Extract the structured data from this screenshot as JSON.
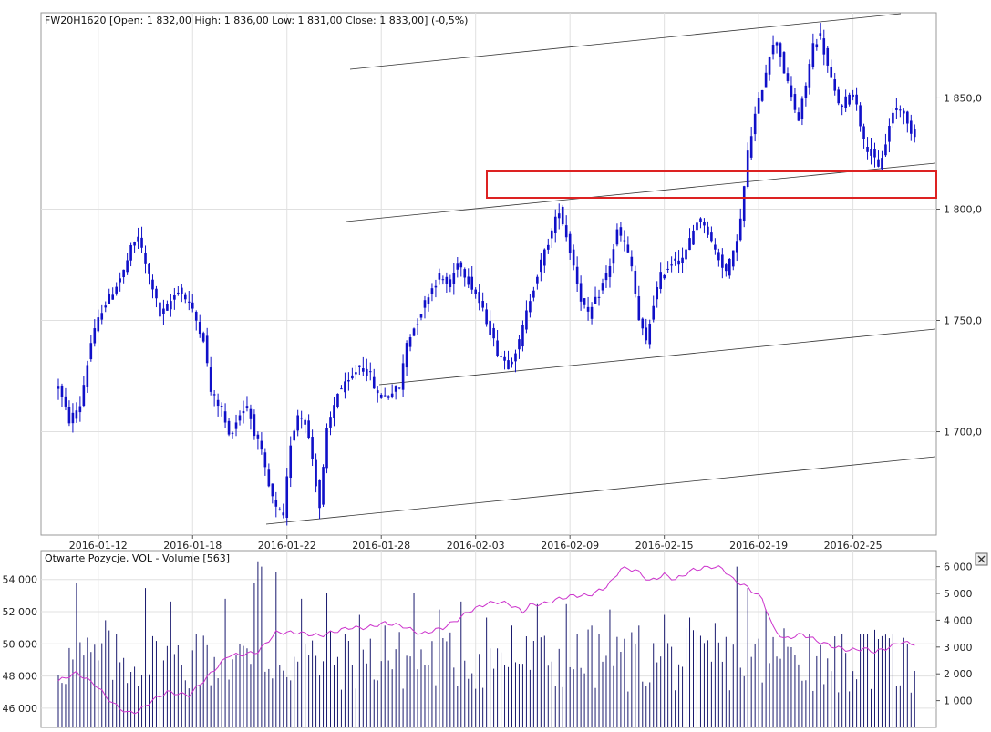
{
  "colors": {
    "candles": "#1010c8",
    "volume_bars": "#1a1a6e",
    "open_interest_line": "#cc33cc",
    "channel_lines": "#333333",
    "highlight_box": "#dd2222",
    "grid": "#e0e0e0"
  },
  "close_icon": "close-icon",
  "chart_data": [
    {
      "type": "candlestick",
      "title": "FW20H1620 [Open: 1 832,00  High: 1 836,00  Low: 1 831,00  Close: 1 833,00] (-0,5%)",
      "x_tick_labels": [
        "2016-01-12",
        "2016-01-18",
        "2016-01-22",
        "2016-01-28",
        "2016-02-03",
        "2016-02-09",
        "2016-02-15",
        "2016-02-19",
        "2016-02-25"
      ],
      "y_tick_labels": [
        "1 850,0",
        "1 800,0",
        "1 750,0",
        "1 700,0"
      ],
      "y_ticks": [
        1850,
        1800,
        1750,
        1700
      ],
      "ylim": [
        1653.5,
        1888.3
      ],
      "x_index_range": [
        0,
        236
      ],
      "x_tick_positions": [
        11,
        37,
        63,
        89,
        115,
        141,
        167,
        193,
        219
      ],
      "grid": true,
      "price_keypoints": [
        [
          0,
          1720
        ],
        [
          3,
          1705
        ],
        [
          6,
          1712
        ],
        [
          9,
          1740
        ],
        [
          12,
          1755
        ],
        [
          15,
          1763
        ],
        [
          18,
          1772
        ],
        [
          20,
          1782
        ],
        [
          22,
          1788
        ],
        [
          24,
          1775
        ],
        [
          26,
          1765
        ],
        [
          28,
          1752
        ],
        [
          30,
          1756
        ],
        [
          33,
          1764
        ],
        [
          36,
          1758
        ],
        [
          38,
          1750
        ],
        [
          40,
          1742
        ],
        [
          42,
          1718
        ],
        [
          45,
          1710
        ],
        [
          47,
          1698
        ],
        [
          50,
          1708
        ],
        [
          52,
          1712
        ],
        [
          54,
          1700
        ],
        [
          56,
          1690
        ],
        [
          58,
          1675
        ],
        [
          60,
          1665
        ],
        [
          62,
          1662
        ],
        [
          64,
          1695
        ],
        [
          66,
          1708
        ],
        [
          68,
          1705
        ],
        [
          70,
          1688
        ],
        [
          72,
          1666
        ],
        [
          74,
          1700
        ],
        [
          77,
          1718
        ],
        [
          80,
          1722
        ],
        [
          83,
          1730
        ],
        [
          86,
          1725
        ],
        [
          88,
          1716
        ],
        [
          90,
          1716
        ],
        [
          92,
          1718
        ],
        [
          94,
          1720
        ],
        [
          96,
          1740
        ],
        [
          99,
          1750
        ],
        [
          102,
          1762
        ],
        [
          105,
          1770
        ],
        [
          108,
          1765
        ],
        [
          110,
          1777
        ],
        [
          112,
          1771
        ],
        [
          115,
          1762
        ],
        [
          118,
          1750
        ],
        [
          121,
          1736
        ],
        [
          124,
          1730
        ],
        [
          127,
          1740
        ],
        [
          130,
          1760
        ],
        [
          133,
          1776
        ],
        [
          136,
          1790
        ],
        [
          138,
          1800
        ],
        [
          140,
          1788
        ],
        [
          142,
          1775
        ],
        [
          144,
          1760
        ],
        [
          146,
          1752
        ],
        [
          149,
          1762
        ],
        [
          152,
          1775
        ],
        [
          154,
          1790
        ],
        [
          156,
          1785
        ],
        [
          158,
          1774
        ],
        [
          160,
          1750
        ],
        [
          162,
          1740
        ],
        [
          164,
          1758
        ],
        [
          166,
          1770
        ],
        [
          168,
          1774
        ],
        [
          170,
          1778
        ],
        [
          172,
          1776
        ],
        [
          174,
          1786
        ],
        [
          176,
          1795
        ],
        [
          178,
          1794
        ],
        [
          180,
          1785
        ],
        [
          182,
          1778
        ],
        [
          184,
          1772
        ],
        [
          186,
          1780
        ],
        [
          188,
          1795
        ],
        [
          190,
          1825
        ],
        [
          192,
          1842
        ],
        [
          194,
          1855
        ],
        [
          196,
          1870
        ],
        [
          198,
          1876
        ],
        [
          200,
          1862
        ],
        [
          202,
          1850
        ],
        [
          204,
          1840
        ],
        [
          206,
          1856
        ],
        [
          208,
          1874
        ],
        [
          210,
          1878
        ],
        [
          212,
          1864
        ],
        [
          214,
          1852
        ],
        [
          216,
          1845
        ],
        [
          218,
          1853
        ],
        [
          220,
          1848
        ],
        [
          222,
          1830
        ],
        [
          224,
          1825
        ],
        [
          226,
          1818
        ],
        [
          228,
          1830
        ],
        [
          230,
          1844
        ],
        [
          232,
          1846
        ],
        [
          234,
          1838
        ],
        [
          236,
          1833
        ]
      ]
    },
    {
      "type": "bar+line",
      "title": "Otwarte Pozycje, VOL - Volume [563]",
      "left_tick_labels": [
        "54 000",
        "52 000",
        "50 000",
        "48 000",
        "46 000"
      ],
      "left_ticks": [
        54000,
        52000,
        50000,
        48000,
        46000
      ],
      "left_ylim": [
        44800,
        55800
      ],
      "right_tick_labels": [
        "6 000",
        "5 000",
        "4 000",
        "3 000",
        "2 000",
        "1 000"
      ],
      "right_ticks": [
        6000,
        5000,
        4000,
        3000,
        2000,
        1000
      ],
      "right_ylim": [
        0,
        6600
      ],
      "grid": true,
      "volume_base_level": 1300,
      "volume_peaks": [
        [
          5,
          5400
        ],
        [
          13,
          4000
        ],
        [
          24,
          5200
        ],
        [
          31,
          4700
        ],
        [
          38,
          3500
        ],
        [
          46,
          4800
        ],
        [
          54,
          5400
        ],
        [
          55,
          6200
        ],
        [
          56,
          6000
        ],
        [
          60,
          5800
        ],
        [
          67,
          4800
        ],
        [
          74,
          5000
        ],
        [
          83,
          4200
        ],
        [
          90,
          3800
        ],
        [
          98,
          5000
        ],
        [
          105,
          4400
        ],
        [
          111,
          4700
        ],
        [
          118,
          4100
        ],
        [
          125,
          3800
        ],
        [
          132,
          4600
        ],
        [
          140,
          4600
        ],
        [
          147,
          3800
        ],
        [
          152,
          4400
        ],
        [
          160,
          3800
        ],
        [
          167,
          4200
        ],
        [
          174,
          4100
        ],
        [
          181,
          3900
        ],
        [
          187,
          6000
        ],
        [
          190,
          5200
        ],
        [
          195,
          4400
        ],
        [
          200,
          3700
        ],
        [
          207,
          3500
        ],
        [
          214,
          3400
        ],
        [
          221,
          3500
        ],
        [
          226,
          3300
        ],
        [
          230,
          3500
        ],
        [
          235,
          1300
        ]
      ],
      "open_interest": [
        [
          0,
          47700
        ],
        [
          5,
          48200
        ],
        [
          10,
          47500
        ],
        [
          15,
          46300
        ],
        [
          19,
          45700
        ],
        [
          22,
          45800
        ],
        [
          26,
          46500
        ],
        [
          30,
          47000
        ],
        [
          36,
          46800
        ],
        [
          40,
          47700
        ],
        [
          47,
          49300
        ],
        [
          50,
          49300
        ],
        [
          55,
          49500
        ],
        [
          60,
          50700
        ],
        [
          66,
          50700
        ],
        [
          72,
          50500
        ],
        [
          80,
          51000
        ],
        [
          85,
          51000
        ],
        [
          90,
          51300
        ],
        [
          95,
          51100
        ],
        [
          100,
          50600
        ],
        [
          106,
          51000
        ],
        [
          110,
          51500
        ],
        [
          113,
          52000
        ],
        [
          118,
          52500
        ],
        [
          121,
          52600
        ],
        [
          124,
          52500
        ],
        [
          128,
          52000
        ],
        [
          130,
          52400
        ],
        [
          134,
          52500
        ],
        [
          138,
          52800
        ],
        [
          142,
          53000
        ],
        [
          146,
          53000
        ],
        [
          150,
          53400
        ],
        [
          153,
          54000
        ],
        [
          155,
          54700
        ],
        [
          159,
          54600
        ],
        [
          163,
          53900
        ],
        [
          167,
          54300
        ],
        [
          170,
          54000
        ],
        [
          175,
          54600
        ],
        [
          180,
          54800
        ],
        [
          183,
          54700
        ],
        [
          186,
          54000
        ],
        [
          190,
          53500
        ],
        [
          194,
          52800
        ],
        [
          197,
          51000
        ],
        [
          200,
          50300
        ],
        [
          205,
          50600
        ],
        [
          210,
          50100
        ],
        [
          214,
          49800
        ],
        [
          218,
          49600
        ],
        [
          222,
          49700
        ],
        [
          225,
          49500
        ],
        [
          228,
          49700
        ],
        [
          232,
          50100
        ],
        [
          236,
          50000
        ]
      ]
    }
  ]
}
